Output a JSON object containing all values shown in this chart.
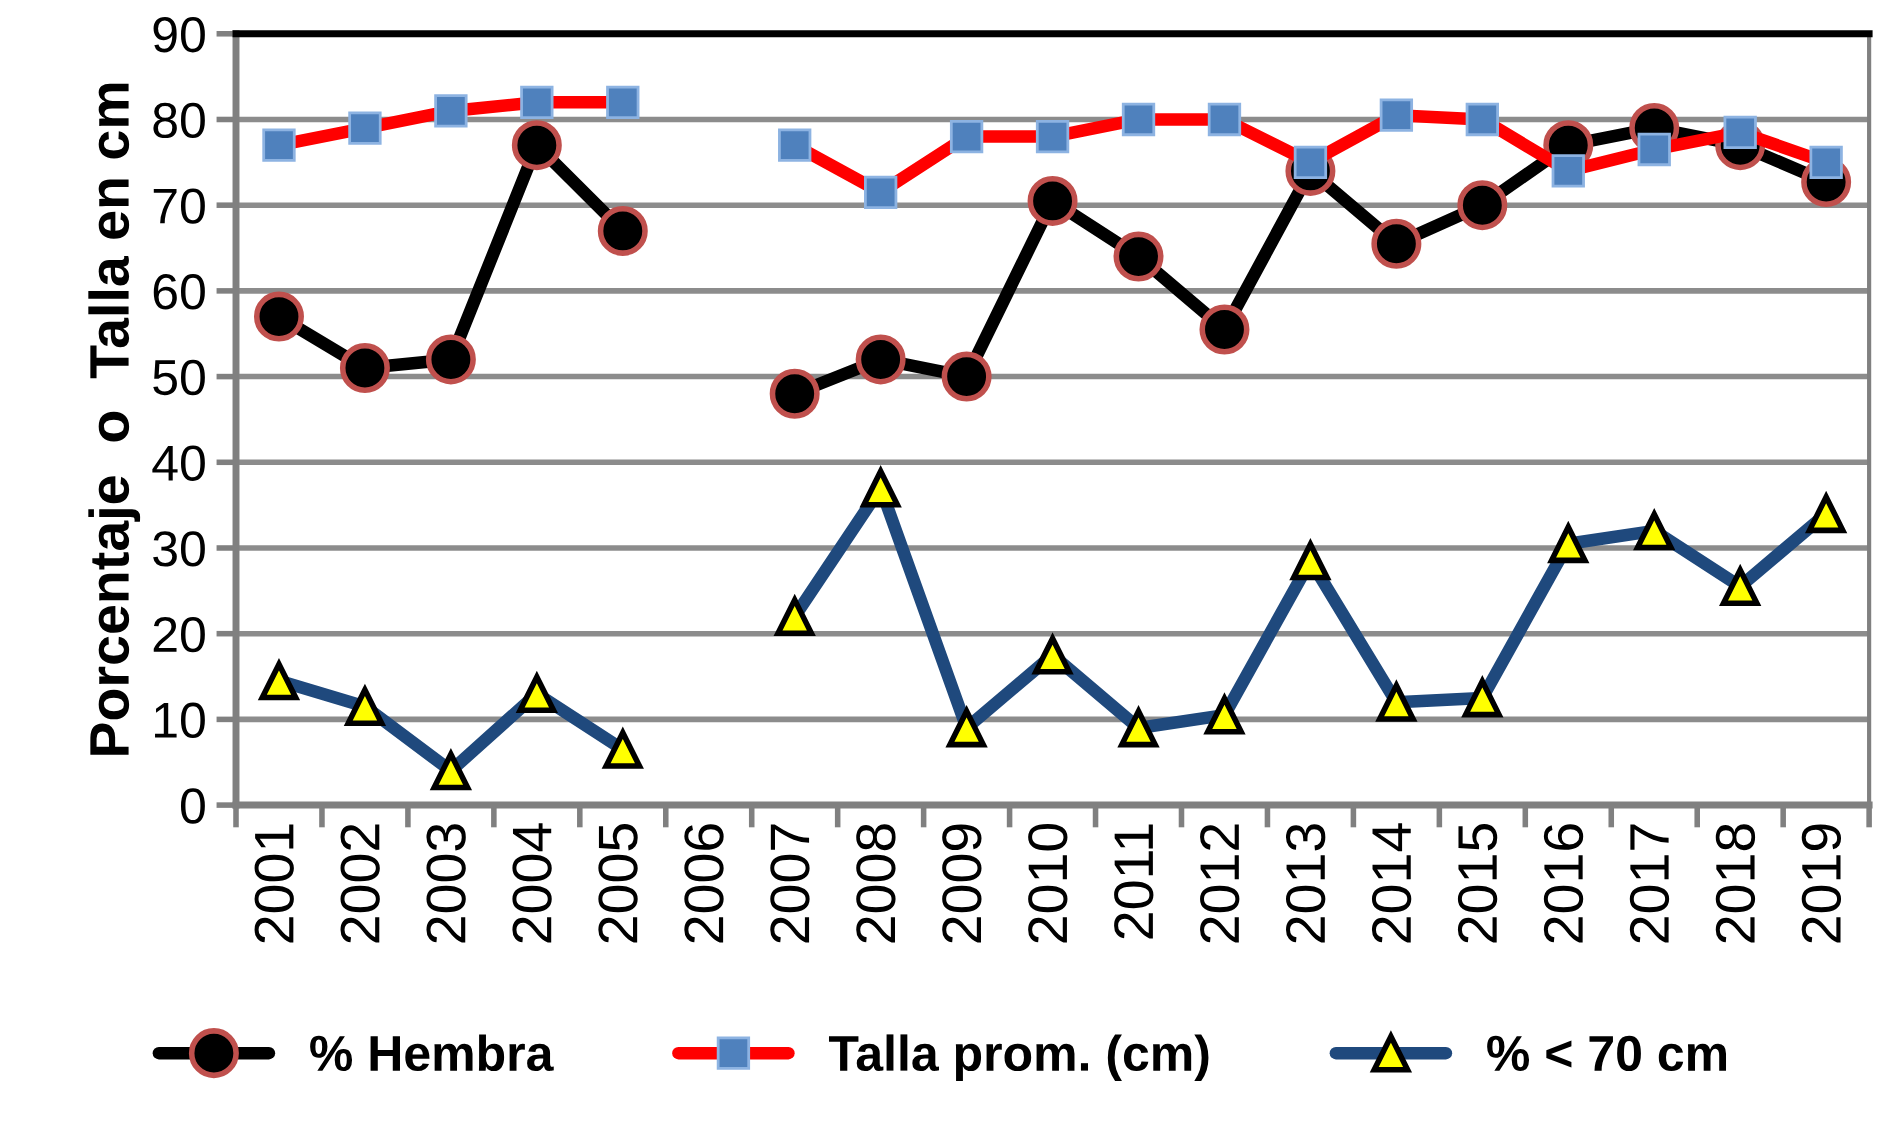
{
  "chart_data": {
    "type": "line",
    "ylabel": "Porcentaje  o  Talla en cm",
    "categories": [
      "2001",
      "2002",
      "2003",
      "2004",
      "2005",
      "2006",
      "2007",
      "2008",
      "2009",
      "2010",
      "2011",
      "2012",
      "2013",
      "2014",
      "2015",
      "2016",
      "2017",
      "2018",
      "2019"
    ],
    "series": [
      {
        "name": "% Hembra",
        "color": "#000000",
        "marker": "circle",
        "values": [
          57,
          51,
          52,
          77,
          67,
          null,
          48,
          52,
          50,
          70.5,
          64,
          55.5,
          74,
          65.5,
          70,
          77,
          79,
          77,
          72.7
        ]
      },
      {
        "name": "Talla prom. (cm)",
        "color": "#ff0000",
        "marker": "square",
        "values": [
          77,
          79,
          81,
          82,
          82,
          null,
          77,
          71.5,
          78,
          78,
          80,
          80,
          75,
          80.5,
          80,
          74,
          76.5,
          78.5,
          75
        ]
      },
      {
        "name": "% < 70 cm",
        "color": "#1f497d",
        "marker": "triangle",
        "values": [
          14.5,
          11.5,
          4,
          13,
          6.5,
          null,
          22,
          37,
          9,
          17.5,
          9,
          10.5,
          28.5,
          12,
          12.5,
          30.5,
          32,
          25.5,
          34
        ]
      }
    ],
    "ylim": [
      0,
      90
    ],
    "yticks": [
      0,
      10,
      20,
      30,
      40,
      50,
      60,
      70,
      80,
      90
    ],
    "grid": "y",
    "legend": "bottom"
  }
}
